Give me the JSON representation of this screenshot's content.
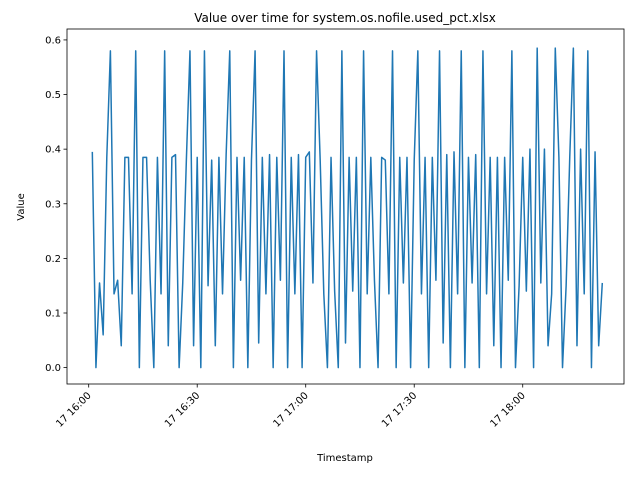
{
  "chart_data": {
    "type": "line",
    "title": "Value over time for system.os.nofile.used_pct.xlsx",
    "x_label": "Timestamp",
    "y_label": "Value",
    "x": [
      "17 16:01",
      "17 16:02",
      "17 16:03",
      "17 16:04",
      "17 16:05",
      "17 16:06",
      "17 16:07",
      "17 16:08",
      "17 16:09",
      "17 16:10",
      "17 16:11",
      "17 16:12",
      "17 16:13",
      "17 16:14",
      "17 16:15",
      "17 16:16",
      "17 16:17",
      "17 16:18",
      "17 16:19",
      "17 16:20",
      "17 16:21",
      "17 16:22",
      "17 16:23",
      "17 16:24",
      "17 16:25",
      "17 16:26",
      "17 16:27",
      "17 16:28",
      "17 16:29",
      "17 16:30",
      "17 16:31",
      "17 16:32",
      "17 16:33",
      "17 16:34",
      "17 16:35",
      "17 16:36",
      "17 16:37",
      "17 16:38",
      "17 16:39",
      "17 16:40",
      "17 16:41",
      "17 16:42",
      "17 16:43",
      "17 16:44",
      "17 16:45",
      "17 16:46",
      "17 16:47",
      "17 16:48",
      "17 16:49",
      "17 16:50",
      "17 16:51",
      "17 16:52",
      "17 16:53",
      "17 16:54",
      "17 16:55",
      "17 16:56",
      "17 16:57",
      "17 16:58",
      "17 16:59",
      "17 17:00",
      "17 17:01",
      "17 17:02",
      "17 17:03",
      "17 17:04",
      "17 17:05",
      "17 17:06",
      "17 17:07",
      "17 17:08",
      "17 17:09",
      "17 17:10",
      "17 17:11",
      "17 17:12",
      "17 17:13",
      "17 17:14",
      "17 17:15",
      "17 17:16",
      "17 17:17",
      "17 17:18",
      "17 17:19",
      "17 17:20",
      "17 17:21",
      "17 17:22",
      "17 17:23",
      "17 17:24",
      "17 17:25",
      "17 17:26",
      "17 17:27",
      "17 17:28",
      "17 17:29",
      "17 17:30",
      "17 17:31",
      "17 17:32",
      "17 17:33",
      "17 17:34",
      "17 17:35",
      "17 17:36",
      "17 17:37",
      "17 17:38",
      "17 17:39",
      "17 17:40",
      "17 17:41",
      "17 17:42",
      "17 17:43",
      "17 17:44",
      "17 17:45",
      "17 17:46",
      "17 17:47",
      "17 17:48",
      "17 17:49",
      "17 17:50",
      "17 17:51",
      "17 17:52",
      "17 17:53",
      "17 17:54",
      "17 17:55",
      "17 17:56",
      "17 17:57",
      "17 17:58",
      "17 17:59",
      "17 18:00",
      "17 18:01",
      "17 18:02",
      "17 18:03",
      "17 18:04",
      "17 18:05",
      "17 18:06",
      "17 18:07",
      "17 18:08",
      "17 18:09",
      "17 18:10",
      "17 18:11",
      "17 18:12",
      "17 18:13",
      "17 18:14",
      "17 18:15",
      "17 18:16",
      "17 18:17",
      "17 18:18",
      "17 18:19",
      "17 18:20",
      "17 18:21",
      "17 18:22"
    ],
    "series": [
      {
        "name": "system.os.nofile.used_pct",
        "color": "#1f77b4",
        "values": [
          0.395,
          0,
          0.155,
          0.06,
          0.385,
          0.58,
          0.135,
          0.16,
          0.04,
          0.385,
          0.385,
          0.135,
          0.58,
          0,
          0.385,
          0.385,
          0.16,
          0,
          0.385,
          0.135,
          0.58,
          0.04,
          0.385,
          0.39,
          0,
          0.155,
          0.38,
          0.58,
          0.04,
          0.385,
          0,
          0.58,
          0.15,
          0.38,
          0.04,
          0.385,
          0.135,
          0.39,
          0.58,
          0,
          0.385,
          0.16,
          0.385,
          0,
          0.38,
          0.58,
          0.045,
          0.385,
          0.135,
          0.39,
          0,
          0.385,
          0.16,
          0.58,
          0,
          0.385,
          0.135,
          0.39,
          0,
          0.385,
          0.395,
          0.155,
          0.58,
          0.38,
          0.135,
          0,
          0.385,
          0.14,
          0,
          0.58,
          0.045,
          0.385,
          0.14,
          0.385,
          0,
          0.58,
          0.135,
          0.385,
          0.16,
          0,
          0.385,
          0.38,
          0.135,
          0.58,
          0,
          0.385,
          0.155,
          0.385,
          0,
          0.38,
          0.58,
          0.135,
          0.385,
          0,
          0.385,
          0.16,
          0.58,
          0.045,
          0.39,
          0,
          0.395,
          0.135,
          0.58,
          0,
          0.385,
          0.155,
          0.39,
          0,
          0.58,
          0.135,
          0.385,
          0.04,
          0.385,
          0,
          0.385,
          0.16,
          0.58,
          0,
          0.15,
          0.385,
          0.14,
          0.4,
          0,
          0.585,
          0.155,
          0.4,
          0.04,
          0.135,
          0.585,
          0.385,
          0,
          0.15,
          0.385,
          0.585,
          0.04,
          0.4,
          0.135,
          0.58,
          0,
          0.395,
          0.04,
          0.155
        ]
      }
    ],
    "xlim": [
      "17 15:54",
      "17 18:28"
    ],
    "xticks": [
      "17 16:00",
      "17 16:30",
      "17 17:00",
      "17 17:30",
      "17 18:00"
    ],
    "ylim": [
      -0.03,
      0.62
    ],
    "yticks": [
      {
        "value": 0,
        "label": "0.0"
      },
      {
        "value": 0.1,
        "label": "0.1"
      },
      {
        "value": 0.2,
        "label": "0.2"
      },
      {
        "value": 0.3,
        "label": "0.3"
      },
      {
        "value": 0.4,
        "label": "0.4"
      },
      {
        "value": 0.5,
        "label": "0.5"
      },
      {
        "value": 0.6,
        "label": "0.6"
      }
    ]
  }
}
